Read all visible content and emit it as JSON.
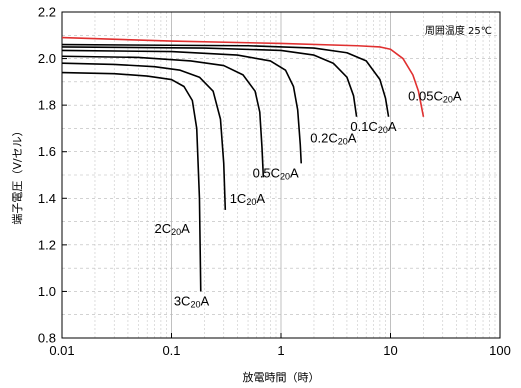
{
  "chart_data": {
    "type": "line",
    "title": "",
    "xlabel": "放電時間（時）",
    "ylabel": "端子電圧（V/セル）",
    "x_scale": "log",
    "xlim": [
      0.01,
      100
    ],
    "ylim": [
      0.8,
      2.2
    ],
    "x_ticks": [
      {
        "value": 0.01,
        "label": "0.01"
      },
      {
        "value": 0.1,
        "label": "0.1"
      },
      {
        "value": 1,
        "label": "1"
      },
      {
        "value": 10,
        "label": "10"
      },
      {
        "value": 100,
        "label": "100"
      }
    ],
    "y_ticks": [
      {
        "value": 0.8,
        "label": "0.8"
      },
      {
        "value": 1.0,
        "label": "1.0"
      },
      {
        "value": 1.2,
        "label": "1.2"
      },
      {
        "value": 1.4,
        "label": "1.4"
      },
      {
        "value": 1.6,
        "label": "1.6"
      },
      {
        "value": 1.8,
        "label": "1.8"
      },
      {
        "value": 2.0,
        "label": "2.0"
      },
      {
        "value": 2.2,
        "label": "2.2"
      }
    ],
    "grid": true,
    "annotation": "周囲温度 25℃",
    "series": [
      {
        "name": "3C20A",
        "color": "#000000",
        "points": [
          [
            0.01,
            1.94
          ],
          [
            0.03,
            1.935
          ],
          [
            0.06,
            1.925
          ],
          [
            0.1,
            1.91
          ],
          [
            0.13,
            1.88
          ],
          [
            0.155,
            1.82
          ],
          [
            0.17,
            1.7
          ],
          [
            0.18,
            1.4
          ],
          [
            0.185,
            1.0
          ]
        ],
        "label_pos": [
          0.105,
          0.94
        ]
      },
      {
        "name": "2C20A",
        "color": "#000000",
        "points": [
          [
            0.01,
            1.98
          ],
          [
            0.03,
            1.975
          ],
          [
            0.07,
            1.965
          ],
          [
            0.12,
            1.95
          ],
          [
            0.18,
            1.92
          ],
          [
            0.24,
            1.86
          ],
          [
            0.28,
            1.74
          ],
          [
            0.3,
            1.55
          ],
          [
            0.31,
            1.35
          ]
        ],
        "label_pos": [
          0.07,
          1.25
        ]
      },
      {
        "name": "1C20A",
        "color": "#000000",
        "points": [
          [
            0.01,
            2.01
          ],
          [
            0.05,
            2.005
          ],
          [
            0.15,
            1.99
          ],
          [
            0.3,
            1.97
          ],
          [
            0.45,
            1.93
          ],
          [
            0.58,
            1.86
          ],
          [
            0.64,
            1.77
          ],
          [
            0.67,
            1.62
          ],
          [
            0.69,
            1.49
          ]
        ],
        "label_pos": [
          0.34,
          1.38
        ]
      },
      {
        "name": "0.5C20A",
        "color": "#000000",
        "points": [
          [
            0.01,
            2.035
          ],
          [
            0.1,
            2.03
          ],
          [
            0.4,
            2.015
          ],
          [
            0.8,
            1.99
          ],
          [
            1.1,
            1.95
          ],
          [
            1.3,
            1.88
          ],
          [
            1.42,
            1.78
          ],
          [
            1.5,
            1.63
          ],
          [
            1.53,
            1.55
          ]
        ],
        "label_pos": [
          0.55,
          1.49
        ]
      },
      {
        "name": "0.2C20A",
        "color": "#000000",
        "points": [
          [
            0.01,
            2.05
          ],
          [
            0.2,
            2.045
          ],
          [
            1,
            2.035
          ],
          [
            2,
            2.015
          ],
          [
            3,
            1.98
          ],
          [
            4,
            1.92
          ],
          [
            4.6,
            1.84
          ],
          [
            4.9,
            1.75
          ]
        ],
        "label_pos": [
          1.85,
          1.64
        ]
      },
      {
        "name": "0.1C20A",
        "color": "#000000",
        "points": [
          [
            0.01,
            2.06
          ],
          [
            0.5,
            2.055
          ],
          [
            2,
            2.045
          ],
          [
            4,
            2.025
          ],
          [
            6,
            1.99
          ],
          [
            8,
            1.91
          ],
          [
            9,
            1.83
          ],
          [
            9.6,
            1.75
          ]
        ],
        "label_pos": [
          4.3,
          1.69
        ]
      },
      {
        "name": "0.05C20A",
        "color": "#e03030",
        "points": [
          [
            0.01,
            2.09
          ],
          [
            0.1,
            2.075
          ],
          [
            1,
            2.065
          ],
          [
            5,
            2.055
          ],
          [
            8,
            2.05
          ],
          [
            10,
            2.04
          ],
          [
            13,
            2.0
          ],
          [
            16,
            1.93
          ],
          [
            18,
            1.86
          ],
          [
            20,
            1.75
          ]
        ],
        "label_pos": [
          14.5,
          1.82
        ]
      }
    ]
  }
}
